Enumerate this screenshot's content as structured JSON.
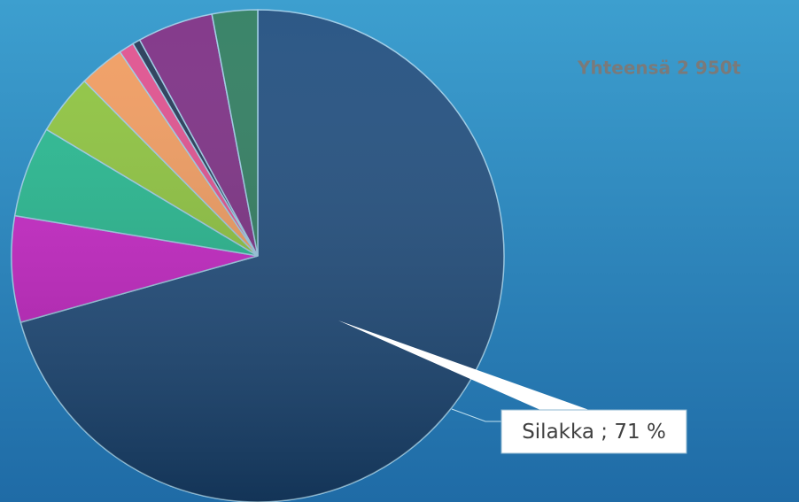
{
  "chart_data": {
    "type": "pie",
    "annotation": "Yhteensä 2 950t",
    "categories": [
      "Silakka",
      null,
      null,
      null,
      null,
      null,
      null,
      null,
      null
    ],
    "values": [
      71,
      7,
      6,
      4,
      3,
      1,
      0.5,
      5,
      3
    ],
    "value_labels": [
      "Silakka ; 71 %",
      null,
      null,
      null,
      null,
      null,
      null,
      null,
      null
    ],
    "colors": [
      "#1b4a7c",
      "#c820c8",
      "#20b88e",
      "#8cc43a",
      "#f29a5c",
      "#e04c8c",
      "#1d3352",
      "#7a2a82",
      "#2a7a5c"
    ]
  }
}
